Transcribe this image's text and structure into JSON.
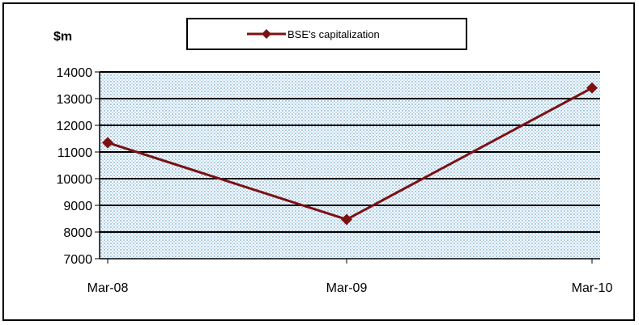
{
  "chart_data": {
    "type": "line",
    "unit_label": "$m",
    "categories": [
      "Mar-08",
      "Mar-09",
      "Mar-10"
    ],
    "series": [
      {
        "name": "BSE's capitalization",
        "values": [
          11350,
          8470,
          13400
        ],
        "color": "#7B1113"
      }
    ],
    "ylim": [
      7000,
      14000
    ],
    "yticks": [
      7000,
      8000,
      9000,
      10000,
      11000,
      12000,
      13000,
      14000
    ],
    "grid": true,
    "plot_background": "dotted light blue",
    "legend_position": "top-center",
    "marker": "diamond"
  }
}
